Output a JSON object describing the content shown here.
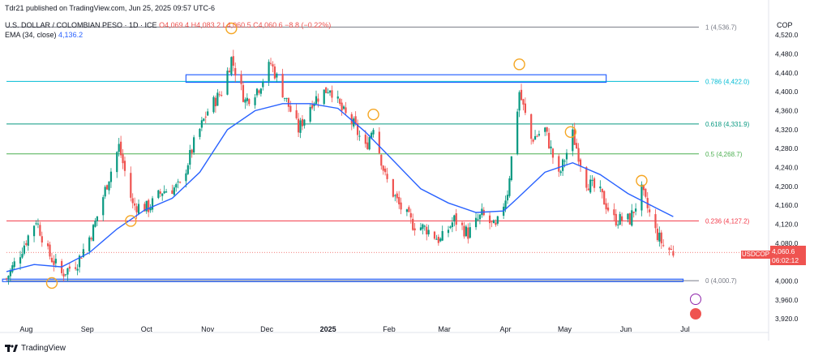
{
  "header": {
    "published": "Tdr21 published on TradingView.com, Jun 25, 2025 09:57 UTC-6",
    "symbol": "U.S. DOLLAR / COLOMBIAN PESO · 1D · ICE",
    "ohlc": "O4,069.4 H4,083.2 L4,060.5 C4,060.6 −8.8 (−0.22%)",
    "ema_label": "EMA (34, close)",
    "ema_value": "4,136.2"
  },
  "currency": "COP",
  "footer": {
    "brand": "TradingView"
  },
  "last_price": {
    "symbol": "USDCOP",
    "price": "4,060.6",
    "countdown": "06:02:12"
  },
  "colors": {
    "up": "#089981",
    "down": "#ef5350",
    "ema": "#2962ff",
    "box": "#2962ff",
    "circle": "#f5a623"
  },
  "chart_data": {
    "type": "candlestick",
    "y_axis_ticks": [
      3920,
      3960,
      4000,
      4040,
      4080,
      4120,
      4160,
      4200,
      4240,
      4280,
      4320,
      4360,
      4400,
      4440,
      4480,
      4520
    ],
    "y_axis_labels": [
      "3,920.0",
      "3,960.0",
      "4,000.0",
      "4,040.0",
      "4,080.0",
      "4,120.0",
      "4,160.0",
      "4,200.0",
      "4,240.0",
      "4,280.0",
      "4,320.0",
      "4,360.0",
      "4,400.0",
      "4,440.0",
      "4,480.0",
      "4,520.0"
    ],
    "ylim": [
      3905,
      4570
    ],
    "x_axis_labels": [
      "Aug",
      "Sep",
      "Oct",
      "Nov",
      "Dec",
      "2025",
      "Feb",
      "Mar",
      "Apr",
      "May",
      "Jun",
      "Jul"
    ],
    "x_axis_dates": [
      "2024-08-01",
      "2024-09-01",
      "2024-10-01",
      "2024-11-01",
      "2024-12-01",
      "2025-01-01",
      "2025-02-01",
      "2025-03-01",
      "2025-04-01",
      "2025-05-01",
      "2025-06-01",
      "2025-07-01"
    ],
    "x_start": "2024-07-22",
    "x_end": "2025-07-08",
    "last_date": "2025-06-25",
    "fib_levels": [
      {
        "ratio": "1",
        "value": 4536.7,
        "label": "1 (4,536.7)",
        "color": "#787b86"
      },
      {
        "ratio": "0.786",
        "value": 4422.0,
        "label": "0.786 (4,422.0)",
        "color": "#00bcd4"
      },
      {
        "ratio": "0.618",
        "value": 4331.9,
        "label": "0.618 (4,331.9)",
        "color": "#089981"
      },
      {
        "ratio": "0.5",
        "value": 4268.7,
        "label": "0.5 (4,268.7)",
        "color": "#4caf50"
      },
      {
        "ratio": "0.236",
        "value": 4127.2,
        "label": "0.236 (4,127.2)",
        "color": "#f23645"
      },
      {
        "ratio": "0",
        "value": 4000.7,
        "label": "0 (4,000.7)",
        "color": "#787b86"
      }
    ],
    "current_price": 4060.6,
    "close_anchors": [
      [
        "2024-07-22",
        4005
      ],
      [
        "2024-07-29",
        4060
      ],
      [
        "2024-08-06",
        4130
      ],
      [
        "2024-08-12",
        4060
      ],
      [
        "2024-08-19",
        4015
      ],
      [
        "2024-08-27",
        4040
      ],
      [
        "2024-09-04",
        4110
      ],
      [
        "2024-09-12",
        4220
      ],
      [
        "2024-09-17",
        4285
      ],
      [
        "2024-09-24",
        4160
      ],
      [
        "2024-10-02",
        4155
      ],
      [
        "2024-10-09",
        4190
      ],
      [
        "2024-10-18",
        4200
      ],
      [
        "2024-10-25",
        4290
      ],
      [
        "2024-11-01",
        4360
      ],
      [
        "2024-11-08",
        4400
      ],
      [
        "2024-11-13",
        4470
      ],
      [
        "2024-11-20",
        4380
      ],
      [
        "2024-11-27",
        4410
      ],
      [
        "2024-12-03",
        4460
      ],
      [
        "2024-12-10",
        4390
      ],
      [
        "2024-12-17",
        4320
      ],
      [
        "2024-12-24",
        4380
      ],
      [
        "2025-01-02",
        4410
      ],
      [
        "2025-01-08",
        4360
      ],
      [
        "2025-01-14",
        4330
      ],
      [
        "2025-01-20",
        4280
      ],
      [
        "2025-01-24",
        4330
      ],
      [
        "2025-01-30",
        4220
      ],
      [
        "2025-02-06",
        4160
      ],
      [
        "2025-02-13",
        4120
      ],
      [
        "2025-02-20",
        4110
      ],
      [
        "2025-02-27",
        4085
      ],
      [
        "2025-03-06",
        4130
      ],
      [
        "2025-03-13",
        4100
      ],
      [
        "2025-03-20",
        4140
      ],
      [
        "2025-03-27",
        4110
      ],
      [
        "2025-04-02",
        4190
      ],
      [
        "2025-04-08",
        4400
      ],
      [
        "2025-04-14",
        4300
      ],
      [
        "2025-04-21",
        4320
      ],
      [
        "2025-04-28",
        4220
      ],
      [
        "2025-05-05",
        4310
      ],
      [
        "2025-05-12",
        4210
      ],
      [
        "2025-05-19",
        4185
      ],
      [
        "2025-05-26",
        4130
      ],
      [
        "2025-06-03",
        4130
      ],
      [
        "2025-06-09",
        4190
      ],
      [
        "2025-06-16",
        4105
      ],
      [
        "2025-06-20",
        4075
      ],
      [
        "2025-06-25",
        4060.6
      ]
    ],
    "ema_anchors": [
      [
        "2024-07-22",
        4020
      ],
      [
        "2024-08-05",
        4035
      ],
      [
        "2024-08-19",
        4030
      ],
      [
        "2024-09-02",
        4060
      ],
      [
        "2024-09-16",
        4110
      ],
      [
        "2024-09-30",
        4150
      ],
      [
        "2024-10-14",
        4175
      ],
      [
        "2024-10-28",
        4230
      ],
      [
        "2024-11-11",
        4320
      ],
      [
        "2024-11-25",
        4360
      ],
      [
        "2024-12-09",
        4375
      ],
      [
        "2024-12-23",
        4375
      ],
      [
        "2025-01-06",
        4365
      ],
      [
        "2025-01-20",
        4315
      ],
      [
        "2025-02-03",
        4255
      ],
      [
        "2025-02-17",
        4195
      ],
      [
        "2025-03-03",
        4165
      ],
      [
        "2025-03-17",
        4145
      ],
      [
        "2025-03-31",
        4148
      ],
      [
        "2025-04-07",
        4175
      ],
      [
        "2025-04-21",
        4230
      ],
      [
        "2025-05-05",
        4250
      ],
      [
        "2025-05-19",
        4225
      ],
      [
        "2025-06-02",
        4185
      ],
      [
        "2025-06-16",
        4155
      ],
      [
        "2025-06-25",
        4136.2
      ]
    ],
    "resistance_box": {
      "x0": "2024-10-21",
      "x1": "2025-05-22",
      "y0": 4420,
      "y1": 4436
    },
    "support_box": {
      "x0": "2024-07-20",
      "x1": "2025-06-30",
      "y0": 3999,
      "y1": 4004
    },
    "markers": [
      {
        "date": "2024-08-14",
        "value": 3996
      },
      {
        "date": "2024-09-23",
        "value": 4127
      },
      {
        "date": "2024-11-13",
        "value": 4534
      },
      {
        "date": "2025-01-24",
        "value": 4352
      },
      {
        "date": "2025-04-08",
        "value": 4458
      },
      {
        "date": "2025-05-04",
        "value": 4315
      },
      {
        "date": "2025-06-09",
        "value": 4212
      }
    ]
  }
}
